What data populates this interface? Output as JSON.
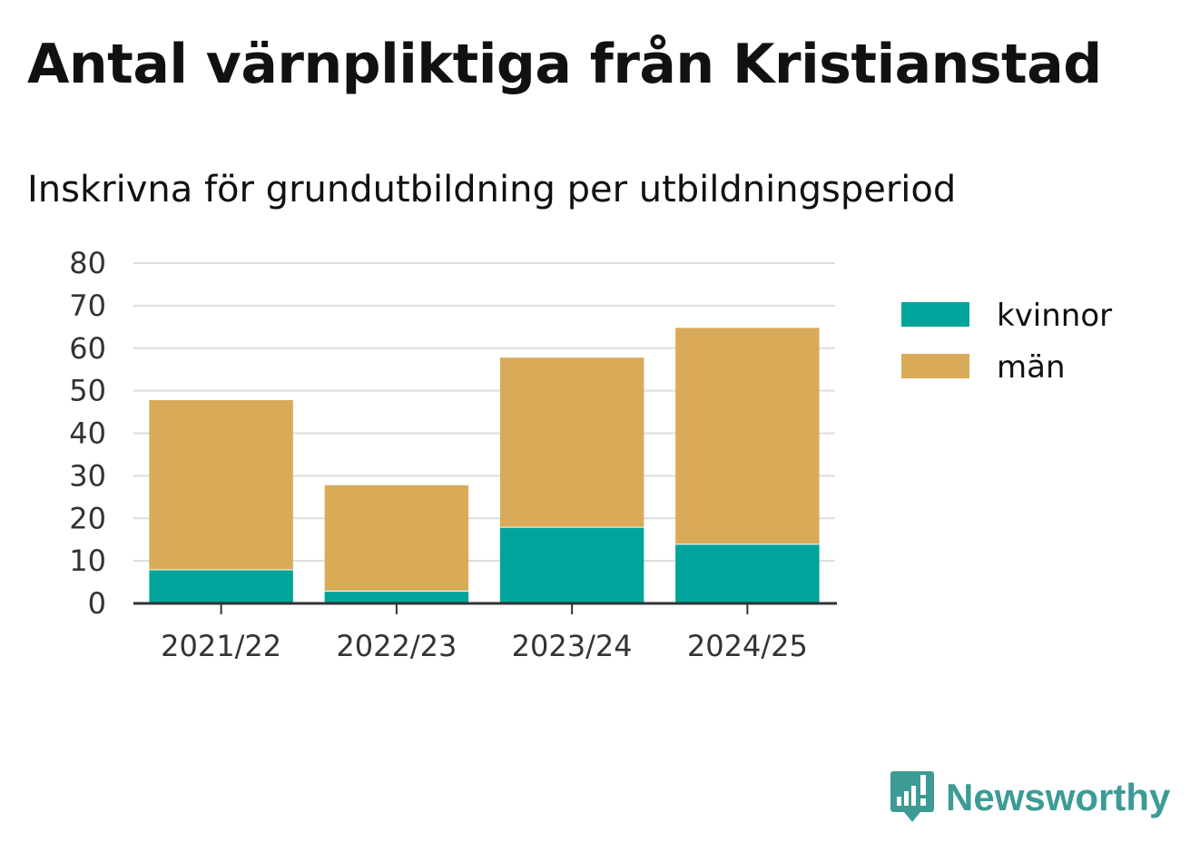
{
  "title": "Antal värnpliktiga från Kristianstad",
  "subtitle": "Inskrivna för grundutbildning per utbildningsperiod",
  "brand": {
    "name": "Newsworthy",
    "icon": "newsworthy-logo-icon",
    "color": "#3d9b96"
  },
  "chart_data": {
    "type": "bar",
    "stacked": true,
    "categories": [
      "2021/22",
      "2022/23",
      "2023/24",
      "2024/25"
    ],
    "series": [
      {
        "name": "kvinnor",
        "color": "#00a49a",
        "values": [
          8,
          3,
          18,
          14
        ]
      },
      {
        "name": "män",
        "color": "#d9ab59",
        "values": [
          40,
          25,
          40,
          51
        ]
      }
    ],
    "ylim": [
      0,
      80
    ],
    "yticks": [
      0,
      10,
      20,
      30,
      40,
      50,
      60,
      70,
      80
    ],
    "grid": true,
    "legend": "right"
  }
}
